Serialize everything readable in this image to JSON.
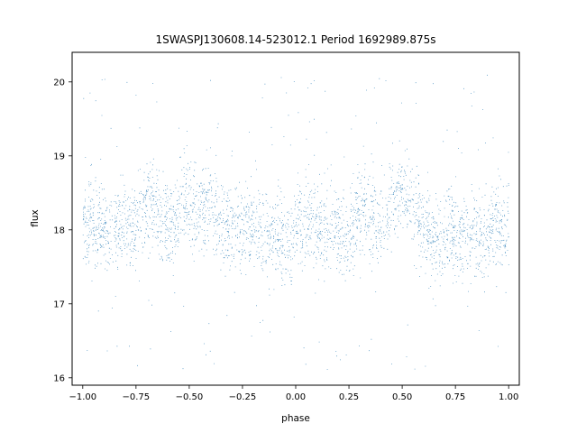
{
  "chart_data": {
    "type": "scatter",
    "title": "1SWASPJ130608.14-523012.1 Period 1692989.875s",
    "xlabel": "phase",
    "ylabel": "flux",
    "xlim": [
      -1.05,
      1.05
    ],
    "ylim": [
      15.9,
      20.4
    ],
    "x_ticks": [
      -1.0,
      -0.75,
      -0.5,
      -0.25,
      0.0,
      0.25,
      0.5,
      0.75,
      1.0
    ],
    "x_tick_labels": [
      "−1.00",
      "−0.75",
      "−0.50",
      "−0.25",
      "0.00",
      "0.25",
      "0.50",
      "0.75",
      "1.00"
    ],
    "y_ticks": [
      16,
      17,
      18,
      19,
      20
    ],
    "y_tick_labels": [
      "16",
      "17",
      "18",
      "19",
      "20"
    ],
    "grid": false,
    "legend": "none",
    "point_color": "#1f77b4",
    "phase_range": [
      -1.0,
      1.0
    ],
    "flux_median": 18.05,
    "flux_core_range": [
      17.4,
      18.9
    ],
    "flux_outlier_range": [
      16.1,
      20.1
    ],
    "approx_points": 24000,
    "brighter_phases": [
      -0.68,
      -0.52,
      -0.42,
      0.32,
      0.47,
      0.52
    ],
    "fainter_phases": [
      -0.12,
      -0.02,
      0.22,
      0.68,
      0.78,
      0.88
    ]
  }
}
